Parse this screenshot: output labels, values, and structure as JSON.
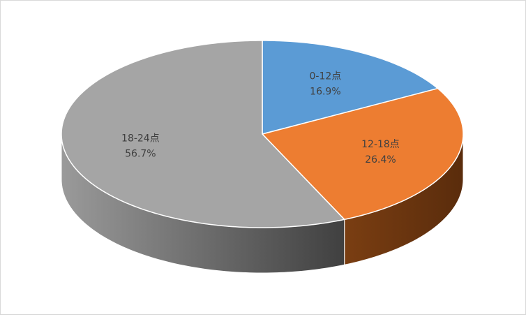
{
  "chart_data": {
    "type": "pie",
    "categories": [
      "0-12点",
      "12-18点",
      "18-24点"
    ],
    "values": [
      16.9,
      26.4,
      56.7
    ],
    "value_labels": [
      "16.9%",
      "26.4%",
      "56.7%"
    ],
    "colors": [
      "#5b9bd5",
      "#ed7d31",
      "#a5a5a5"
    ]
  }
}
